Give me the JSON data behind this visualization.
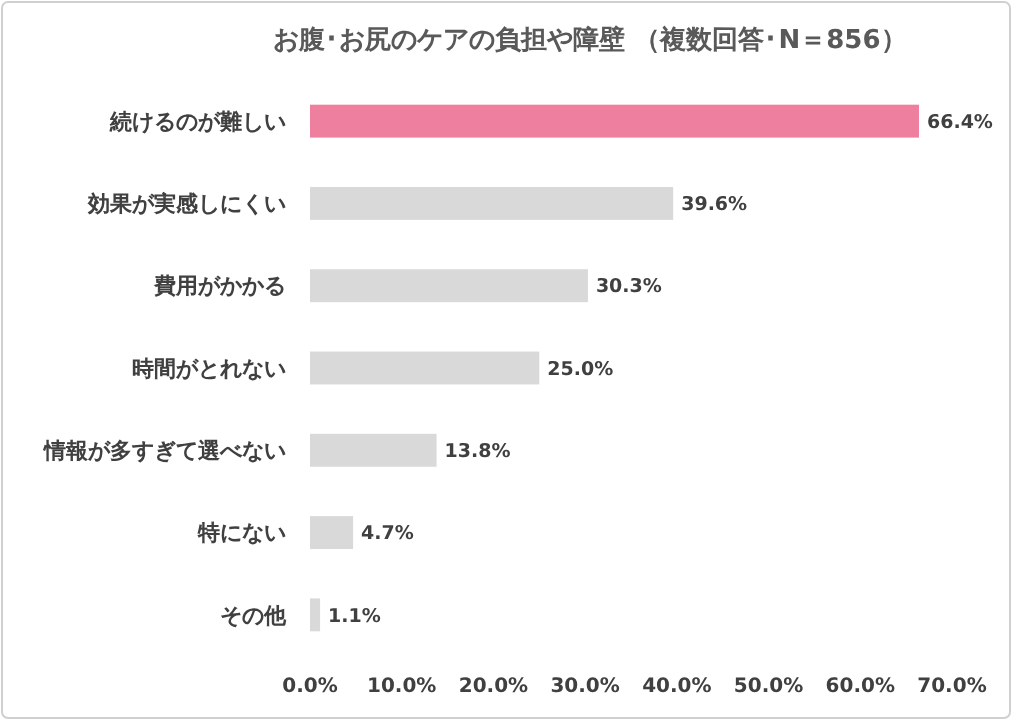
{
  "chart_data": {
    "type": "bar",
    "orientation": "horizontal",
    "title": "お腹･お尻のケアの負担や障壁 （複数回答･N＝856）",
    "categories": [
      "続けるのが難しい",
      "効果が実感しにくい",
      "費用がかかる",
      "時間がとれない",
      "情報が多すぎて選べない",
      "特にない",
      "その他"
    ],
    "values": [
      66.4,
      39.6,
      30.3,
      25.0,
      13.8,
      4.7,
      1.1
    ],
    "colors": [
      "#ee7f9f",
      "#d9d9d9",
      "#d9d9d9",
      "#d9d9d9",
      "#d9d9d9",
      "#d9d9d9",
      "#d9d9d9"
    ],
    "value_labels": [
      "66.4%",
      "39.6%",
      "30.3%",
      "25.0%",
      "13.8%",
      "4.7%",
      "1.1%"
    ],
    "xlim": [
      0,
      70
    ],
    "xticks": [
      {
        "value": 0,
        "label": "0.0%"
      },
      {
        "value": 10,
        "label": "10.0%"
      },
      {
        "value": 20,
        "label": "20.0%"
      },
      {
        "value": 30,
        "label": "30.0%"
      },
      {
        "value": 40,
        "label": "40.0%"
      },
      {
        "value": 50,
        "label": "50.0%"
      },
      {
        "value": 60,
        "label": "60.0%"
      },
      {
        "value": 70,
        "label": "70.0%"
      }
    ],
    "grid": false
  }
}
